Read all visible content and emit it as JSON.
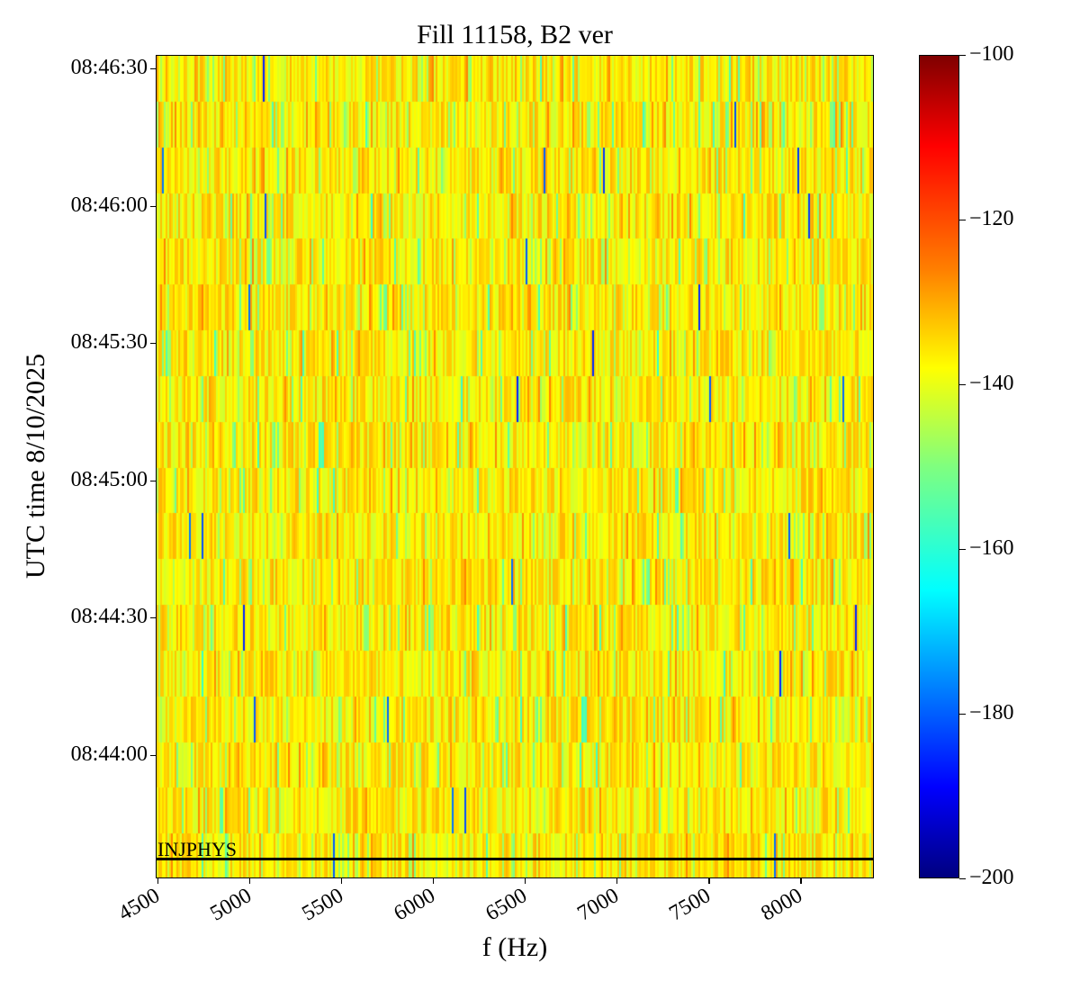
{
  "chart_data": {
    "type": "heatmap",
    "title": "Fill 11158, B2 ver",
    "xlabel": "f (Hz)",
    "ylabel": "UTC time 8/10/2025",
    "xlim": [
      4490,
      8400
    ],
    "ylim_seconds": [
      -177,
      3
    ],
    "x_ticks": [
      4500,
      5000,
      5500,
      6000,
      6500,
      7000,
      7500,
      8000
    ],
    "x_tick_labels": [
      "4500",
      "5000",
      "5500",
      "6000",
      "6500",
      "7000",
      "7500",
      "8000"
    ],
    "y_ticks_seconds": [
      0,
      -30,
      -60,
      -90,
      -120,
      -150
    ],
    "y_tick_labels": [
      "08:46:30",
      "08:46:00",
      "08:45:30",
      "08:45:00",
      "08:44:30",
      "08:44:00"
    ],
    "time_rows": 18,
    "row_duration_s": 10,
    "colormap": "jet",
    "colorbar": {
      "range": [
        -200,
        -100
      ],
      "ticks": [
        -100,
        -120,
        -140,
        -160,
        -180,
        -200
      ],
      "tick_labels": [
        "−100",
        "−120",
        "−140",
        "−160",
        "−180",
        "−200"
      ]
    },
    "value_distribution": {
      "typical": -136,
      "min_seen": -185,
      "max_seen": -128
    },
    "annotations": [
      {
        "text": "INJPHYS",
        "time_seconds": -172.5,
        "type": "hline"
      }
    ]
  }
}
